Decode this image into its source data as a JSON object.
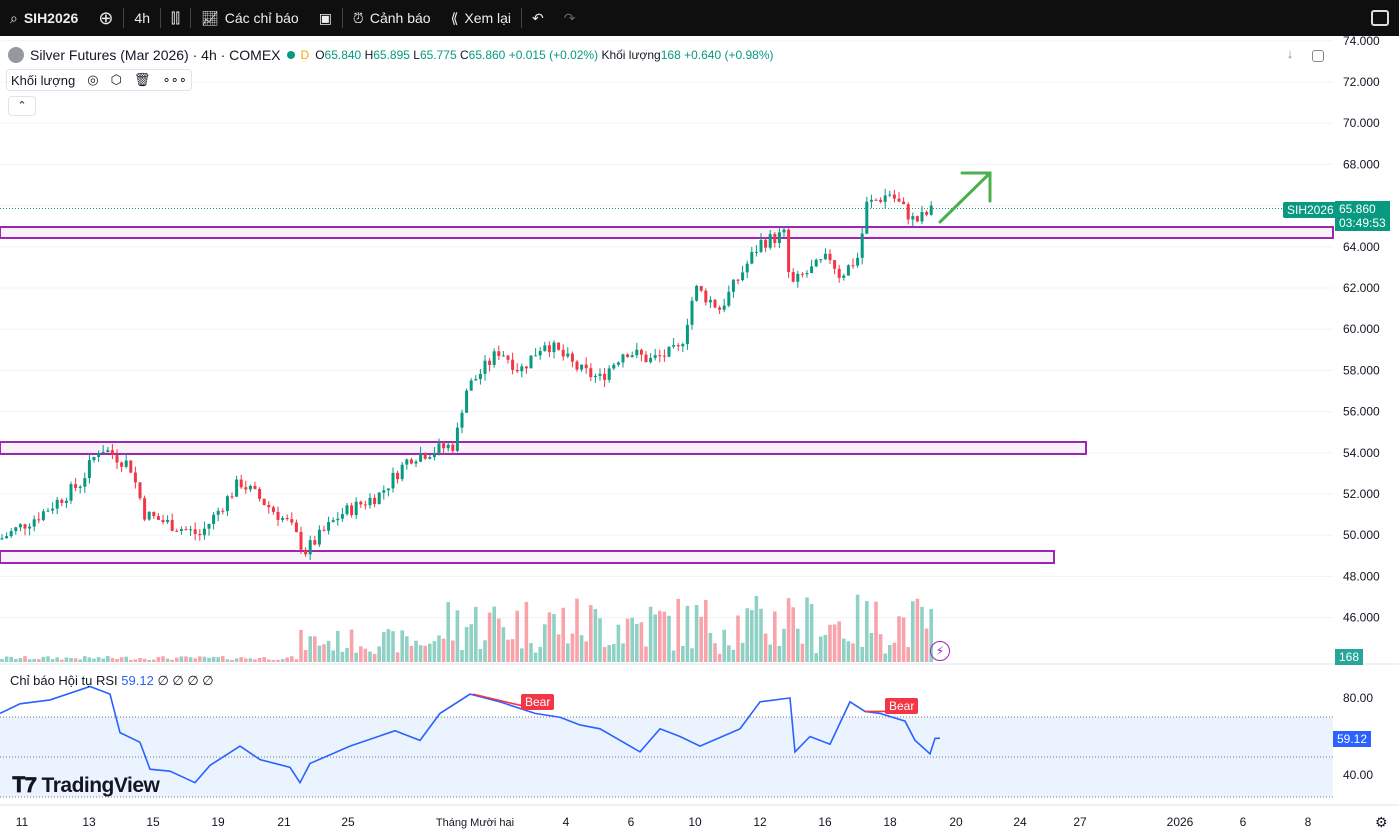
{
  "toolbar": {
    "symbol": "SIH2026",
    "interval": "4h",
    "indicators": "Các chỉ báo",
    "alerts": "Cảnh báo",
    "replay": "Xem lại"
  },
  "legend": {
    "title": "Silver Futures (Mar 2026) · 4h · COMEX",
    "session": "D",
    "o": "65.840",
    "h": "65.895",
    "l": "65.775",
    "c": "65.860",
    "change": "+0.015 (+0.02%)",
    "volume_label": "Khối lượng",
    "volume": "168",
    "volume_change": "+0.640 (+0.98%)"
  },
  "volume_indicator": {
    "label": "Khối lượng"
  },
  "rsi": {
    "label": "Chỉ báo Hội tụ RSI",
    "value": "59.12",
    "placeholders": "∅ ∅ ∅ ∅",
    "bear_label": "Bear",
    "ticks": [
      "80.00",
      "40.00"
    ]
  },
  "price_axis": {
    "ticks": [
      "74.000",
      "72.000",
      "70.000",
      "68.000",
      "64.000",
      "62.000",
      "60.000",
      "58.000",
      "56.000",
      "54.000",
      "52.000",
      "50.000",
      "48.000",
      "46.000"
    ],
    "symbol_badge": "SIH2026",
    "last_price": "65.860",
    "countdown": "03:49:53",
    "volume_badge": "168"
  },
  "time_axis": [
    "11",
    "13",
    "15",
    "19",
    "21",
    "25",
    "Tháng Mười hai",
    "4",
    "6",
    "10",
    "12",
    "16",
    "18",
    "20",
    "24",
    "27",
    "2026",
    "6",
    "8"
  ],
  "brand": "TradingView",
  "colors": {
    "up": "#089981",
    "down": "#f23645",
    "zone": "#9c27b0",
    "rsi": "#2962ff",
    "arrow": "#4caf50"
  },
  "price_path": [
    [
      0,
      49.8
    ],
    [
      40,
      51
    ],
    [
      80,
      52.5
    ],
    [
      100,
      54.3
    ],
    [
      130,
      53.4
    ],
    [
      145,
      51
    ],
    [
      200,
      50
    ],
    [
      240,
      52.6
    ],
    [
      290,
      50.5
    ],
    [
      305,
      49.2
    ],
    [
      340,
      51
    ],
    [
      380,
      52
    ],
    [
      410,
      53.8
    ],
    [
      455,
      54.4
    ],
    [
      465,
      57
    ],
    [
      500,
      59
    ],
    [
      520,
      58
    ],
    [
      545,
      59.4
    ],
    [
      580,
      58
    ],
    [
      600,
      57.6
    ],
    [
      625,
      59
    ],
    [
      650,
      58.5
    ],
    [
      680,
      59
    ],
    [
      695,
      62
    ],
    [
      720,
      61
    ],
    [
      745,
      63
    ],
    [
      760,
      64.2
    ],
    [
      785,
      64.6
    ],
    [
      790,
      62
    ],
    [
      800,
      62.5
    ],
    [
      830,
      63.5
    ],
    [
      840,
      62.6
    ],
    [
      860,
      63.6
    ],
    [
      865,
      66
    ],
    [
      890,
      66.6
    ],
    [
      915,
      65.2
    ],
    [
      935,
      65.86
    ]
  ],
  "rsi_path": [
    [
      0,
      72
    ],
    [
      20,
      77
    ],
    [
      50,
      79
    ],
    [
      90,
      86
    ],
    [
      110,
      82
    ],
    [
      120,
      62
    ],
    [
      140,
      57
    ],
    [
      150,
      43
    ],
    [
      170,
      42
    ],
    [
      195,
      36
    ],
    [
      210,
      45
    ],
    [
      240,
      55
    ],
    [
      260,
      48
    ],
    [
      290,
      44
    ],
    [
      300,
      36
    ],
    [
      310,
      46
    ],
    [
      350,
      55
    ],
    [
      395,
      63
    ],
    [
      420,
      58
    ],
    [
      440,
      72
    ],
    [
      470,
      82
    ],
    [
      500,
      78
    ],
    [
      535,
      72
    ],
    [
      560,
      70
    ],
    [
      580,
      66
    ],
    [
      600,
      64
    ],
    [
      640,
      52
    ],
    [
      660,
      64
    ],
    [
      680,
      60
    ],
    [
      700,
      55
    ],
    [
      740,
      64
    ],
    [
      760,
      78
    ],
    [
      790,
      80
    ],
    [
      795,
      52
    ],
    [
      810,
      60
    ],
    [
      830,
      56
    ],
    [
      850,
      78
    ],
    [
      865,
      73
    ],
    [
      880,
      72
    ],
    [
      905,
      68
    ],
    [
      915,
      58
    ],
    [
      930,
      51
    ],
    [
      935,
      59
    ],
    [
      940,
      59.12
    ]
  ]
}
